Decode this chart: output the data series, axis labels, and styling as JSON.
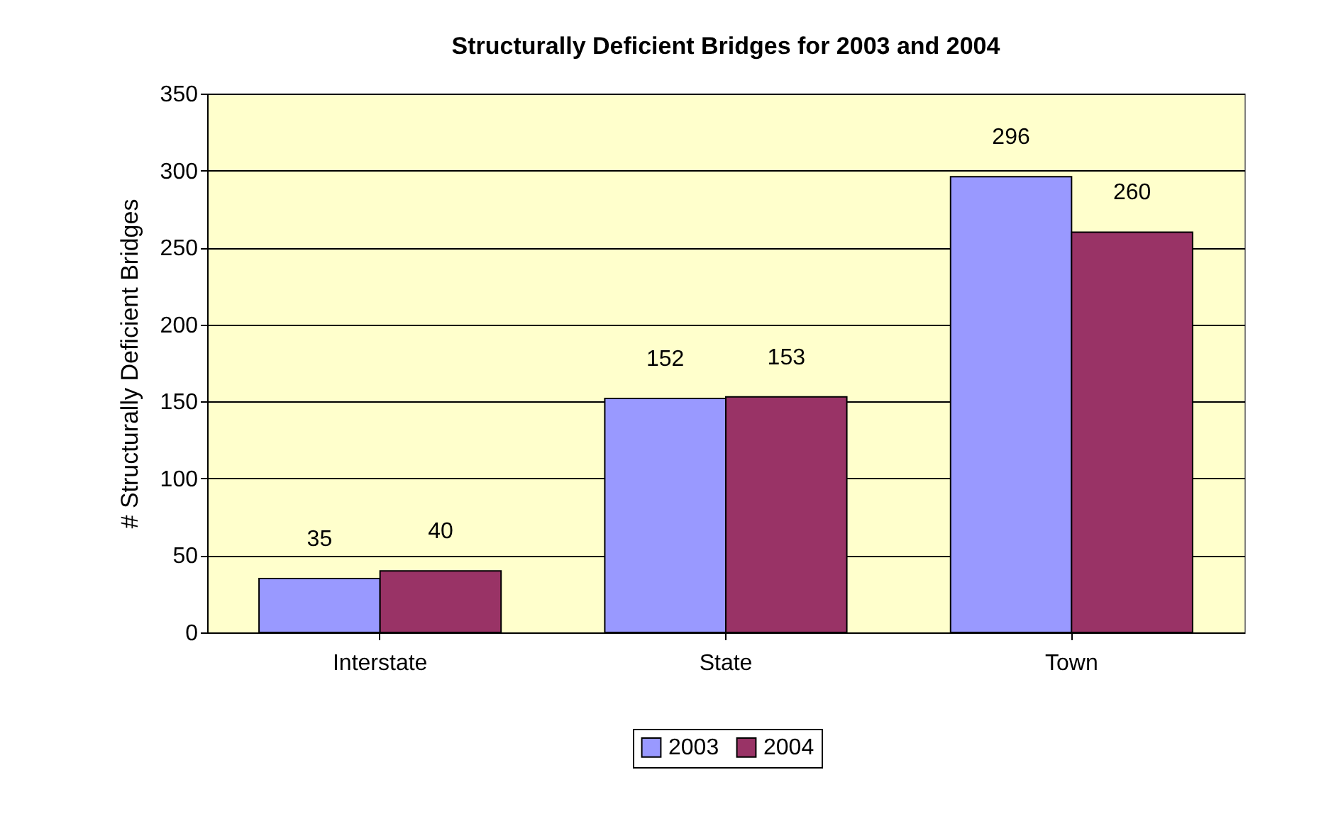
{
  "chart_data": {
    "type": "bar",
    "title": "Structurally Deficient Bridges for 2003 and 2004",
    "ylabel": "# Structurally Deficient Bridges",
    "categories": [
      "Interstate",
      "State",
      "Town"
    ],
    "series": [
      {
        "name": "2003",
        "color": "#9999ff",
        "values": [
          35,
          152,
          296
        ]
      },
      {
        "name": "2004",
        "color": "#993366",
        "values": [
          40,
          153,
          260
        ]
      }
    ],
    "ylim": [
      0,
      350
    ],
    "yticks": [
      0,
      50,
      100,
      150,
      200,
      250,
      300,
      350
    ],
    "grid": "y",
    "legend": "bottom",
    "data_labels": true
  }
}
